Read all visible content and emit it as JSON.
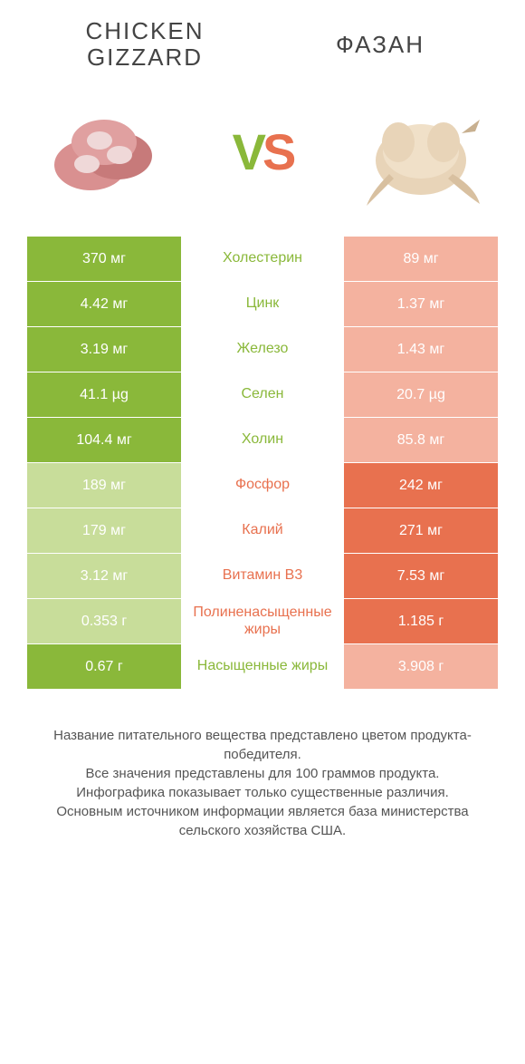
{
  "colors": {
    "left": "#8ab83a",
    "right": "#e8714f",
    "left_light": "#c8dd9a",
    "right_light": "#f4b29f",
    "bg": "#ffffff",
    "text": "#444444"
  },
  "header": {
    "left_title": "CHICKEN\nGIZZARD",
    "right_title": "ФАЗАН",
    "vs_v": "V",
    "vs_s": "S"
  },
  "rows": [
    {
      "label": "Холестерин",
      "left": "370 мг",
      "right": "89 мг",
      "winner": "left"
    },
    {
      "label": "Цинк",
      "left": "4.42 мг",
      "right": "1.37 мг",
      "winner": "left"
    },
    {
      "label": "Железо",
      "left": "3.19 мг",
      "right": "1.43 мг",
      "winner": "left"
    },
    {
      "label": "Селен",
      "left": "41.1 µg",
      "right": "20.7 µg",
      "winner": "left"
    },
    {
      "label": "Холин",
      "left": "104.4 мг",
      "right": "85.8 мг",
      "winner": "left"
    },
    {
      "label": "Фосфор",
      "left": "189 мг",
      "right": "242 мг",
      "winner": "right"
    },
    {
      "label": "Калий",
      "left": "179 мг",
      "right": "271 мг",
      "winner": "right"
    },
    {
      "label": "Витамин B3",
      "left": "3.12 мг",
      "right": "7.53 мг",
      "winner": "right"
    },
    {
      "label": "Полиненасыщенные жиры",
      "left": "0.353 г",
      "right": "1.185 г",
      "winner": "right"
    },
    {
      "label": "Насыщенные жиры",
      "left": "0.67 г",
      "right": "3.908 г",
      "winner": "left"
    }
  ],
  "footer": {
    "line1": "Название питательного вещества представлено цветом продукта-победителя.",
    "line2": "Все значения представлены для 100 граммов продукта.",
    "line3": "Инфографика показывает только существенные различия.",
    "line4": "Основным источником информации является база министерства сельского хозяйства США."
  }
}
